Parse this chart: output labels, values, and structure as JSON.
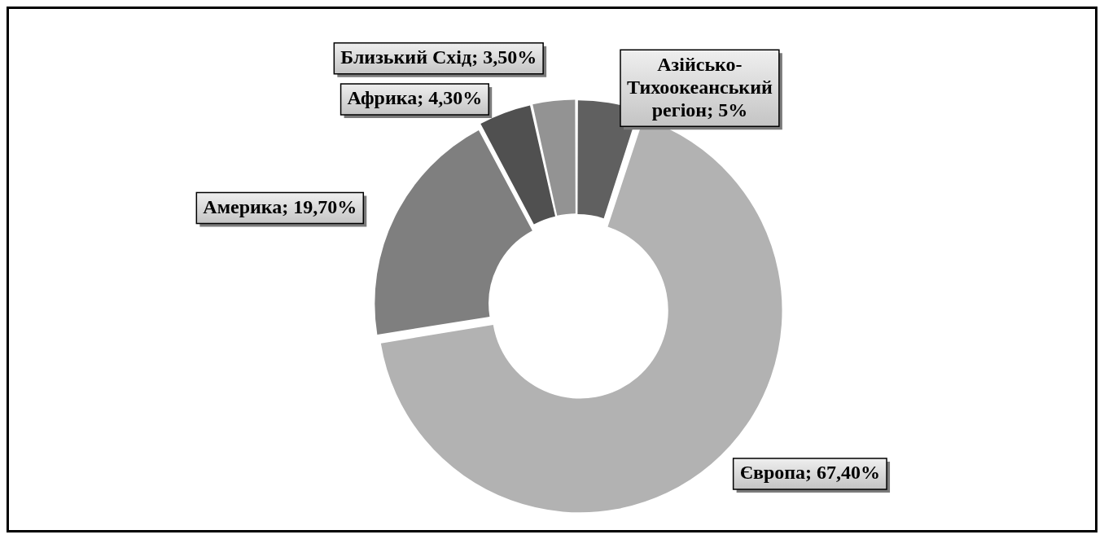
{
  "chart_data": {
    "type": "donut",
    "categories": [
      "Азійсько-Тихоокеанський регіон",
      "Європа",
      "Америка",
      "Африка",
      "Близький Схід"
    ],
    "values": [
      5,
      67.4,
      19.7,
      4.3,
      3.5
    ],
    "colors": [
      "#606060",
      "#b2b2b2",
      "#7f7f7f",
      "#505050",
      "#939393"
    ],
    "value_labels": [
      "5%",
      "67,40%",
      "19,70%",
      "4,30%",
      "3,50%"
    ],
    "legend": false
  }
}
